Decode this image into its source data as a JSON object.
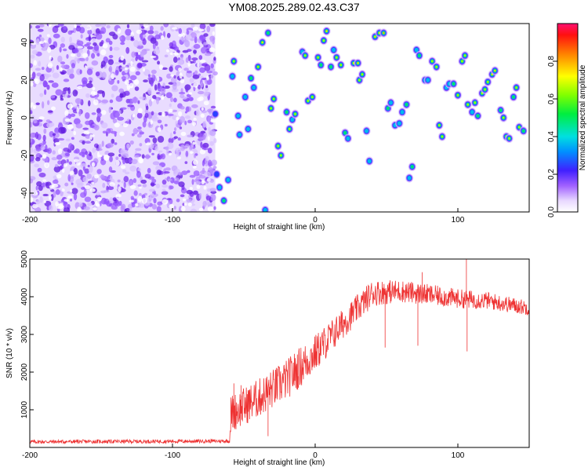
{
  "title": "YM08.2025.289.02.43.C37",
  "chart_data": [
    {
      "type": "heatmap",
      "xlabel": "Height of straight line (km)",
      "ylabel": "Frequency (Hz)",
      "xlim": [
        -200,
        150
      ],
      "ylim": [
        -50,
        50
      ],
      "xticks": [
        "-200",
        "-100",
        "0",
        "100"
      ],
      "xtick_values": [
        -200,
        -100,
        0,
        100
      ],
      "yticks": [
        "40",
        "20",
        "0",
        "-20",
        "-40"
      ],
      "ytick_values": [
        40,
        20,
        0,
        -20,
        -40
      ],
      "colorbar": {
        "label": "Normalized spectral amplitude",
        "range": [
          0,
          1
        ],
        "ticks": [
          "0.0",
          "0.2",
          "0.4",
          "0.6",
          "0.8"
        ],
        "tick_values": [
          0,
          0.2,
          0.4,
          0.6,
          0.8
        ]
      },
      "noise_region_x": [
        -200,
        -70
      ],
      "blobs": [
        {
          "x": -69,
          "y": -30,
          "a": 0.4
        },
        {
          "x": -67,
          "y": -37,
          "a": 0.5
        },
        {
          "x": -64,
          "y": -44,
          "a": 0.6
        },
        {
          "x": -61,
          "y": -33,
          "a": 0.55
        },
        {
          "x": -58,
          "y": 22,
          "a": 0.5
        },
        {
          "x": -57,
          "y": 30,
          "a": 0.75
        },
        {
          "x": -54,
          "y": 1,
          "a": 0.5
        },
        {
          "x": -53,
          "y": -9,
          "a": 0.55
        },
        {
          "x": -49,
          "y": 11,
          "a": 0.45
        },
        {
          "x": -47,
          "y": -6,
          "a": 0.5
        },
        {
          "x": -45,
          "y": 21,
          "a": 0.6
        },
        {
          "x": -43,
          "y": 16,
          "a": 0.5
        },
        {
          "x": -40,
          "y": 27,
          "a": 0.8
        },
        {
          "x": -37,
          "y": 40,
          "a": 0.85
        },
        {
          "x": -33,
          "y": 45,
          "a": 0.6
        },
        {
          "x": -35,
          "y": -49,
          "a": 0.5
        },
        {
          "x": -31,
          "y": 5,
          "a": 0.75
        },
        {
          "x": -29,
          "y": 10,
          "a": 0.8
        },
        {
          "x": -26,
          "y": -15,
          "a": 0.8
        },
        {
          "x": -24,
          "y": -20,
          "a": 0.7
        },
        {
          "x": -20,
          "y": 3,
          "a": 0.6
        },
        {
          "x": -18,
          "y": -6,
          "a": 0.7
        },
        {
          "x": -16,
          "y": -1,
          "a": 0.55
        },
        {
          "x": -14,
          "y": 2,
          "a": 0.7
        },
        {
          "x": -9,
          "y": 35,
          "a": 0.5
        },
        {
          "x": -7,
          "y": 33,
          "a": 0.75
        },
        {
          "x": -5,
          "y": 9,
          "a": 0.7
        },
        {
          "x": -2,
          "y": 11,
          "a": 0.75
        },
        {
          "x": 2,
          "y": 32,
          "a": 0.8
        },
        {
          "x": 4,
          "y": 28,
          "a": 0.6
        },
        {
          "x": 6,
          "y": 41,
          "a": 0.8
        },
        {
          "x": 8,
          "y": 46,
          "a": 0.85
        },
        {
          "x": 11,
          "y": 27,
          "a": 0.6
        },
        {
          "x": 13,
          "y": 36,
          "a": 0.5
        },
        {
          "x": 15,
          "y": 32,
          "a": 0.8
        },
        {
          "x": 18,
          "y": 28,
          "a": 0.7
        },
        {
          "x": 21,
          "y": -8,
          "a": 0.6
        },
        {
          "x": 23,
          "y": -11,
          "a": 0.5
        },
        {
          "x": 27,
          "y": 29,
          "a": 0.85
        },
        {
          "x": 30,
          "y": 29,
          "a": 0.9
        },
        {
          "x": 31,
          "y": 20,
          "a": 0.8
        },
        {
          "x": 33,
          "y": 23,
          "a": 0.7
        },
        {
          "x": 36,
          "y": -7,
          "a": 0.5
        },
        {
          "x": 38,
          "y": -23,
          "a": 0.5
        },
        {
          "x": 42,
          "y": 43,
          "a": 0.85
        },
        {
          "x": 45,
          "y": 45,
          "a": 0.9
        },
        {
          "x": 48,
          "y": 45,
          "a": 0.95
        },
        {
          "x": 51,
          "y": 5,
          "a": 0.65
        },
        {
          "x": 53,
          "y": 8,
          "a": 0.5
        },
        {
          "x": 56,
          "y": -4,
          "a": 0.5
        },
        {
          "x": 59,
          "y": -3,
          "a": 0.55
        },
        {
          "x": 61,
          "y": 3,
          "a": 0.5
        },
        {
          "x": 64,
          "y": 7,
          "a": 0.6
        },
        {
          "x": 66,
          "y": -32,
          "a": 0.5
        },
        {
          "x": 68,
          "y": -26,
          "a": 0.6
        },
        {
          "x": 71,
          "y": 36,
          "a": 0.5
        },
        {
          "x": 73,
          "y": 33,
          "a": 0.6
        },
        {
          "x": 77,
          "y": 20,
          "a": 0.5
        },
        {
          "x": 79,
          "y": 20,
          "a": 0.55
        },
        {
          "x": 82,
          "y": 30,
          "a": 0.8
        },
        {
          "x": 85,
          "y": 27,
          "a": 0.75
        },
        {
          "x": 87,
          "y": -4,
          "a": 0.8
        },
        {
          "x": 89,
          "y": -10,
          "a": 0.8
        },
        {
          "x": 92,
          "y": 16,
          "a": 0.55
        },
        {
          "x": 94,
          "y": 18,
          "a": 0.5
        },
        {
          "x": 97,
          "y": 18,
          "a": 0.6
        },
        {
          "x": 100,
          "y": 12,
          "a": 0.7
        },
        {
          "x": 103,
          "y": 30,
          "a": 0.75
        },
        {
          "x": 105,
          "y": 33,
          "a": 0.8
        },
        {
          "x": 107,
          "y": 7,
          "a": 0.8
        },
        {
          "x": 110,
          "y": 3,
          "a": 0.5
        },
        {
          "x": 112,
          "y": 8,
          "a": 0.75
        },
        {
          "x": 114,
          "y": 1,
          "a": 0.65
        },
        {
          "x": 117,
          "y": 13,
          "a": 0.75
        },
        {
          "x": 119,
          "y": 15,
          "a": 0.8
        },
        {
          "x": 121,
          "y": 19,
          "a": 0.7
        },
        {
          "x": 124,
          "y": 23,
          "a": 0.85
        },
        {
          "x": 126,
          "y": 25,
          "a": 0.9
        },
        {
          "x": 130,
          "y": 4,
          "a": 0.65
        },
        {
          "x": 132,
          "y": 0,
          "a": 0.7
        },
        {
          "x": 134,
          "y": -10,
          "a": 0.8
        },
        {
          "x": 136,
          "y": -11,
          "a": 0.75
        },
        {
          "x": 139,
          "y": 11,
          "a": 0.6
        },
        {
          "x": 141,
          "y": 16,
          "a": 0.75
        },
        {
          "x": 143,
          "y": -5,
          "a": 0.7
        },
        {
          "x": 146,
          "y": -7,
          "a": 0.6
        },
        {
          "x": -70,
          "y": 2,
          "a": 0.4
        }
      ]
    },
    {
      "type": "line",
      "xlabel": "Height of straight line (km)",
      "ylabel": "SNR (10 * v/v)",
      "xlim": [
        -200,
        150
      ],
      "ylim": [
        0,
        5000
      ],
      "xticks": [
        "-200",
        "-100",
        "0",
        "100"
      ],
      "xtick_values": [
        -200,
        -100,
        0,
        100
      ],
      "yticks": [
        "5000",
        "4000",
        "3000",
        "2000",
        "1000"
      ],
      "ytick_values": [
        5000,
        4000,
        3000,
        2000,
        1000
      ],
      "color": "#ee3333",
      "trend": [
        {
          "x": -200,
          "y": 150
        },
        {
          "x": -120,
          "y": 160
        },
        {
          "x": -60,
          "y": 170
        },
        {
          "x": -59,
          "y": 900
        },
        {
          "x": -40,
          "y": 1300
        },
        {
          "x": -20,
          "y": 1800
        },
        {
          "x": 0,
          "y": 2500
        },
        {
          "x": 20,
          "y": 3300
        },
        {
          "x": 30,
          "y": 3700
        },
        {
          "x": 40,
          "y": 4100
        },
        {
          "x": 60,
          "y": 4150
        },
        {
          "x": 80,
          "y": 4050
        },
        {
          "x": 100,
          "y": 3950
        },
        {
          "x": 120,
          "y": 3900
        },
        {
          "x": 150,
          "y": 3700
        }
      ],
      "noise_amplitude": [
        {
          "x": -200,
          "y": 50
        },
        {
          "x": -60,
          "y": 50
        },
        {
          "x": -59,
          "y": 500
        },
        {
          "x": -10,
          "y": 550
        },
        {
          "x": 20,
          "y": 400
        },
        {
          "x": 60,
          "y": 300
        },
        {
          "x": 150,
          "y": 200
        }
      ],
      "spikes": [
        {
          "x": -57,
          "y": 1700
        },
        {
          "x": -52,
          "y": 1650
        },
        {
          "x": -33,
          "y": 300
        },
        {
          "x": 49,
          "y": 2650
        },
        {
          "x": 72,
          "y": 2700
        },
        {
          "x": 106,
          "y": 5000
        },
        {
          "x": 106.5,
          "y": 2550
        },
        {
          "x": 75,
          "y": 4650
        }
      ]
    }
  ]
}
